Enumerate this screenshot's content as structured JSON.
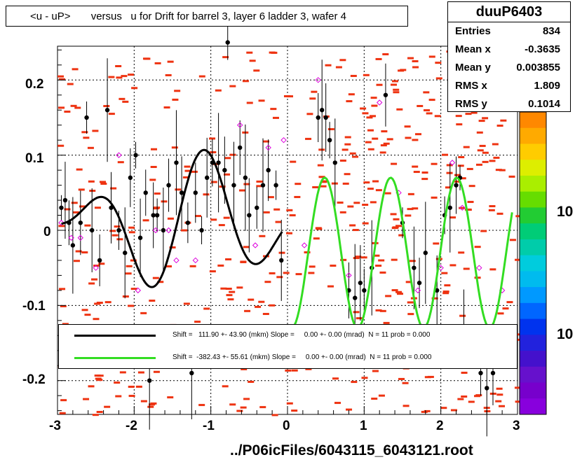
{
  "chart_data": {
    "type": "scatter",
    "title": "<u - uP>       versus   u for Drift for barrel 3, layer 6 ladder 3, wafer 4",
    "xlabel": "../P06icFiles/6043115_6043121.root",
    "ylabel": "",
    "xlim": [
      -3,
      3
    ],
    "ylim": [
      -0.245,
      0.245
    ],
    "grid": true,
    "x_ticks": [
      "-3",
      "-2",
      "-1",
      "0",
      "1",
      "2",
      "3"
    ],
    "y_ticks": [
      "0.2",
      "0.1",
      "0",
      "-0.1",
      "-0.2"
    ],
    "z_ticks": [
      "10",
      "10"
    ],
    "stats": {
      "name": "duuP6403",
      "rows": [
        {
          "key": "Entries",
          "value": "834"
        },
        {
          "key": "Mean x",
          "value": "-0.3635"
        },
        {
          "key": "Mean y",
          "value": "0.003855"
        },
        {
          "key": "RMS x",
          "value": "1.809"
        },
        {
          "key": "RMS y",
          "value": "0.1014"
        }
      ]
    },
    "legend": [
      {
        "text": "Shift =   111.90 +- 43.90 (mkm) Slope =     0.00 +- 0.00 (mrad)  N = 11 prob = 0.000",
        "color": "#000000"
      },
      {
        "text": "Shift =  -382.43 +- 55.61 (mkm) Slope =     0.00 +- 0.00 (mrad)  N = 11 prob = 0.000",
        "color": "#33dd22"
      }
    ],
    "series": [
      {
        "values_black": [
          [
            -2.95,
            0.03
          ],
          [
            -2.9,
            0.04
          ],
          [
            -2.85,
            0.01
          ],
          [
            -2.8,
            -0.02
          ],
          [
            -2.7,
            0.01
          ],
          [
            -2.62,
            0.15
          ],
          [
            -2.55,
            0.0
          ],
          [
            -2.45,
            -0.04
          ],
          [
            -2.35,
            0.16
          ],
          [
            -2.3,
            0.03
          ],
          [
            -2.2,
            0.0
          ],
          [
            -2.12,
            -0.03
          ],
          [
            -2.05,
            0.07
          ],
          [
            -1.98,
            0.1
          ],
          [
            -1.92,
            -0.01
          ],
          [
            -1.85,
            0.05
          ],
          [
            -1.8,
            -0.2
          ],
          [
            -1.75,
            0.02
          ],
          [
            -1.7,
            0.02
          ],
          [
            -1.62,
            0.0
          ],
          [
            -1.55,
            0.06
          ],
          [
            -1.45,
            0.09
          ],
          [
            -1.38,
            0.05
          ],
          [
            -1.3,
            0.01
          ],
          [
            -1.25,
            -0.19
          ],
          [
            -1.2,
            0.05
          ],
          [
            -1.12,
            0.0
          ],
          [
            -1.05,
            0.07
          ],
          [
            -0.98,
            0.09
          ],
          [
            -0.9,
            0.09
          ],
          [
            -0.82,
            0.08
          ],
          [
            -0.78,
            0.25
          ],
          [
            -0.7,
            0.06
          ],
          [
            -0.62,
            0.11
          ],
          [
            -0.55,
            0.07
          ],
          [
            -0.5,
            0.02
          ],
          [
            -0.4,
            0.03
          ],
          [
            -0.32,
            0.06
          ],
          [
            -0.25,
            0.08
          ],
          [
            -0.15,
            0.06
          ],
          [
            -0.08,
            -0.04
          ],
          [
            0.4,
            0.15
          ],
          [
            0.45,
            0.16
          ],
          [
            0.5,
            0.15
          ],
          [
            0.55,
            0.12
          ],
          [
            0.62,
            0.09
          ],
          [
            0.8,
            -0.08
          ],
          [
            0.88,
            -0.09
          ],
          [
            0.95,
            -0.07
          ],
          [
            1.0,
            -0.08
          ],
          [
            1.1,
            -0.05
          ],
          [
            1.28,
            0.18
          ],
          [
            1.5,
            0.01
          ],
          [
            1.65,
            -0.05
          ],
          [
            1.72,
            -0.07
          ],
          [
            1.8,
            -0.03
          ],
          [
            1.95,
            -0.08
          ],
          [
            2.05,
            0.02
          ],
          [
            2.12,
            0.03
          ],
          [
            2.2,
            0.06
          ],
          [
            2.25,
            0.07
          ],
          [
            2.3,
            -0.13
          ],
          [
            2.52,
            -0.19
          ],
          [
            2.6,
            -0.21
          ],
          [
            2.68,
            -0.19
          ]
        ],
        "values_open": [
          [
            -2.95,
            0.01
          ],
          [
            -2.82,
            -0.01
          ],
          [
            -2.7,
            -0.01
          ],
          [
            -2.5,
            -0.05
          ],
          [
            -2.2,
            0.1
          ],
          [
            -1.95,
            -0.08
          ],
          [
            -1.72,
            0.0
          ],
          [
            -1.55,
            0.0
          ],
          [
            -1.45,
            -0.04
          ],
          [
            -1.2,
            -0.04
          ],
          [
            -0.62,
            0.14
          ],
          [
            -0.42,
            -0.02
          ],
          [
            -0.25,
            0.11
          ],
          [
            -0.05,
            0.12
          ],
          [
            0.22,
            -0.02
          ],
          [
            0.4,
            0.2
          ],
          [
            0.8,
            -0.06
          ],
          [
            1.2,
            0.17
          ],
          [
            1.45,
            0.05
          ],
          [
            1.7,
            -0.08
          ],
          [
            2.0,
            -0.05
          ],
          [
            2.15,
            0.09
          ],
          [
            2.28,
            0.03
          ],
          [
            2.5,
            -0.05
          ],
          [
            2.8,
            -0.08
          ]
        ]
      }
    ],
    "fit_black": {
      "x_range": [
        -2.95,
        -0.05
      ],
      "label": "Shift = 111.90 +- 43.90"
    },
    "fit_green": {
      "x_range": [
        0.05,
        2.95
      ],
      "label": "Shift = -382.43 +- 55.61"
    }
  }
}
